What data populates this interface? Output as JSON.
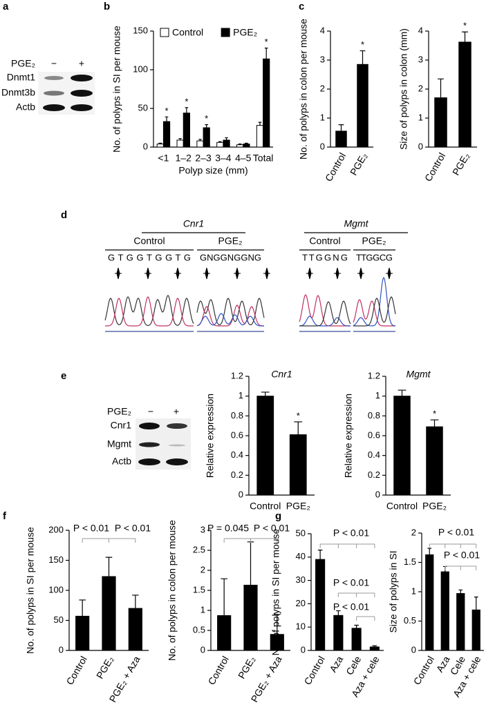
{
  "panel_labels": [
    "a",
    "b",
    "c",
    "d",
    "e",
    "f",
    "g"
  ],
  "blot_a": {
    "treatment": "PGE₂",
    "lanes": [
      "−",
      "+"
    ],
    "proteins": [
      "Dnmt1",
      "Dnmt3b",
      "Actb"
    ]
  },
  "blot_e": {
    "treatment": "PGE₂",
    "lanes": [
      "−",
      "+"
    ],
    "proteins": [
      "Cnr1",
      "Mgmt",
      "Actb"
    ]
  },
  "sequencing": {
    "genes": [
      {
        "name": "Cnr1",
        "groups": [
          {
            "name": "Control",
            "sequence": "G T G G T G G T G"
          },
          {
            "name": "PGE₂",
            "sequence": "G N G G N G G N G"
          }
        ]
      },
      {
        "name": "Mgmt",
        "groups": [
          {
            "name": "Control",
            "sequence": "T T G G N G"
          },
          {
            "name": "PGE₂",
            "sequence": "T T G G C G"
          }
        ]
      }
    ]
  },
  "chart_data": [
    {
      "type": "bar",
      "y_label": "No. of polyps in SI per mouse",
      "x_label": "Polyp size (mm)",
      "categories": [
        "<1",
        "1–2",
        "2–3",
        "3–4",
        "4–5",
        "Total"
      ],
      "series": [
        {
          "name": "Control",
          "color": "#ffffff",
          "values": [
            4,
            9,
            8,
            6,
            3,
            28
          ],
          "errors": [
            1,
            2,
            2,
            1,
            1,
            4
          ]
        },
        {
          "name": "PGE₂",
          "color": "#000000",
          "values": [
            33,
            44,
            25,
            9,
            4,
            114
          ],
          "errors": [
            6,
            7,
            4,
            3,
            1,
            14
          ],
          "stars": [
            "*",
            "*",
            "*",
            null,
            null,
            "*"
          ]
        }
      ],
      "ylim": [
        0,
        150
      ],
      "yticks": [
        0,
        50,
        100,
        150
      ],
      "legend": "top"
    },
    {
      "type": "bar",
      "y_label": "No. of polyps in colon per mouse",
      "categories": [
        "Control",
        "PGE₂"
      ],
      "values": [
        0.55,
        2.85
      ],
      "errors": [
        0.22,
        0.47
      ],
      "stars": [
        null,
        "*"
      ],
      "color": "#000000",
      "ylim": [
        0,
        4
      ],
      "yticks": [
        0,
        1,
        2,
        3,
        4
      ]
    },
    {
      "type": "bar",
      "y_label": "Size of polyps in colon (mm)",
      "categories": [
        "Control",
        "PGE₂"
      ],
      "values": [
        1.7,
        3.62
      ],
      "errors": [
        0.65,
        0.35
      ],
      "stars": [
        null,
        "*"
      ],
      "color": "#000000",
      "ylim": [
        0,
        4
      ],
      "yticks": [
        0,
        1,
        2,
        3,
        4
      ]
    },
    {
      "type": "bar",
      "title": "Cnr1",
      "y_label": "Relative expression",
      "categories": [
        "Control",
        "PGE₂"
      ],
      "values": [
        1,
        0.61
      ],
      "errors": [
        0.04,
        0.13
      ],
      "stars": [
        null,
        "*"
      ],
      "color": "#000000",
      "ylim": [
        0,
        1.2
      ],
      "yticks": [
        0,
        0.2,
        0.4,
        0.6,
        0.8,
        1,
        1.2
      ]
    },
    {
      "type": "bar",
      "title": "Mgmt",
      "y_label": "Relative expression",
      "categories": [
        "Control",
        "PGE₂"
      ],
      "values": [
        1,
        0.69
      ],
      "errors": [
        0.06,
        0.07
      ],
      "stars": [
        null,
        "*"
      ],
      "color": "#000000",
      "ylim": [
        0,
        1.2
      ],
      "yticks": [
        0,
        0.2,
        0.4,
        0.6,
        0.8,
        1,
        1.2
      ]
    },
    {
      "type": "bar",
      "y_label": "No. of polyps in SI per mouse",
      "categories": [
        "Control",
        "PGE₂",
        "PGE₂ + Aza"
      ],
      "values": [
        57,
        123,
        70
      ],
      "errors": [
        27,
        32,
        22
      ],
      "color": "#000000",
      "annotations": [
        "P < 0.01",
        "P < 0.01"
      ],
      "ylim": [
        0,
        200
      ],
      "yticks": [
        0,
        50,
        100,
        150,
        200
      ]
    },
    {
      "type": "bar",
      "y_label": "No. of polyps in colon per mouse",
      "categories": [
        "Control",
        "PGE₂",
        "PGE₂ + Aza"
      ],
      "values": [
        0.87,
        1.63,
        0.4
      ],
      "errors": [
        0.92,
        1.08,
        0.5
      ],
      "color": "#000000",
      "annotations": [
        "P = 0.045",
        "P < 0.01"
      ],
      "ylim": [
        0,
        3
      ],
      "yticks": [
        0,
        0.5,
        1,
        1.5,
        2,
        2.5,
        3
      ]
    },
    {
      "type": "bar",
      "y_label": "No. of polyps in SI per mouse",
      "categories": [
        "Control",
        "Aza",
        "Cele",
        "Aza + cele"
      ],
      "values": [
        39,
        15,
        9.5,
        1.5
      ],
      "errors": [
        4,
        2,
        1.3,
        0.5
      ],
      "color": "#000000",
      "annotations": [
        "P < 0.01",
        "P < 0.01",
        "P < 0.01"
      ],
      "ylim": [
        0,
        50
      ],
      "yticks": [
        0,
        10,
        20,
        30,
        40,
        50
      ]
    },
    {
      "type": "bar",
      "y_label": "Size of polyps in SI",
      "categories": [
        "Control",
        "Aza",
        "Cele",
        "Aza + cele"
      ],
      "values": [
        1.63,
        1.34,
        0.97,
        0.69
      ],
      "errors": [
        0.11,
        0.09,
        0.06,
        0.22
      ],
      "color": "#000000",
      "annotations": [
        "P < 0.01",
        "P < 0.01"
      ],
      "ylim": [
        0,
        2
      ],
      "yticks": [
        0,
        0.5,
        1,
        1.5,
        2
      ]
    }
  ]
}
